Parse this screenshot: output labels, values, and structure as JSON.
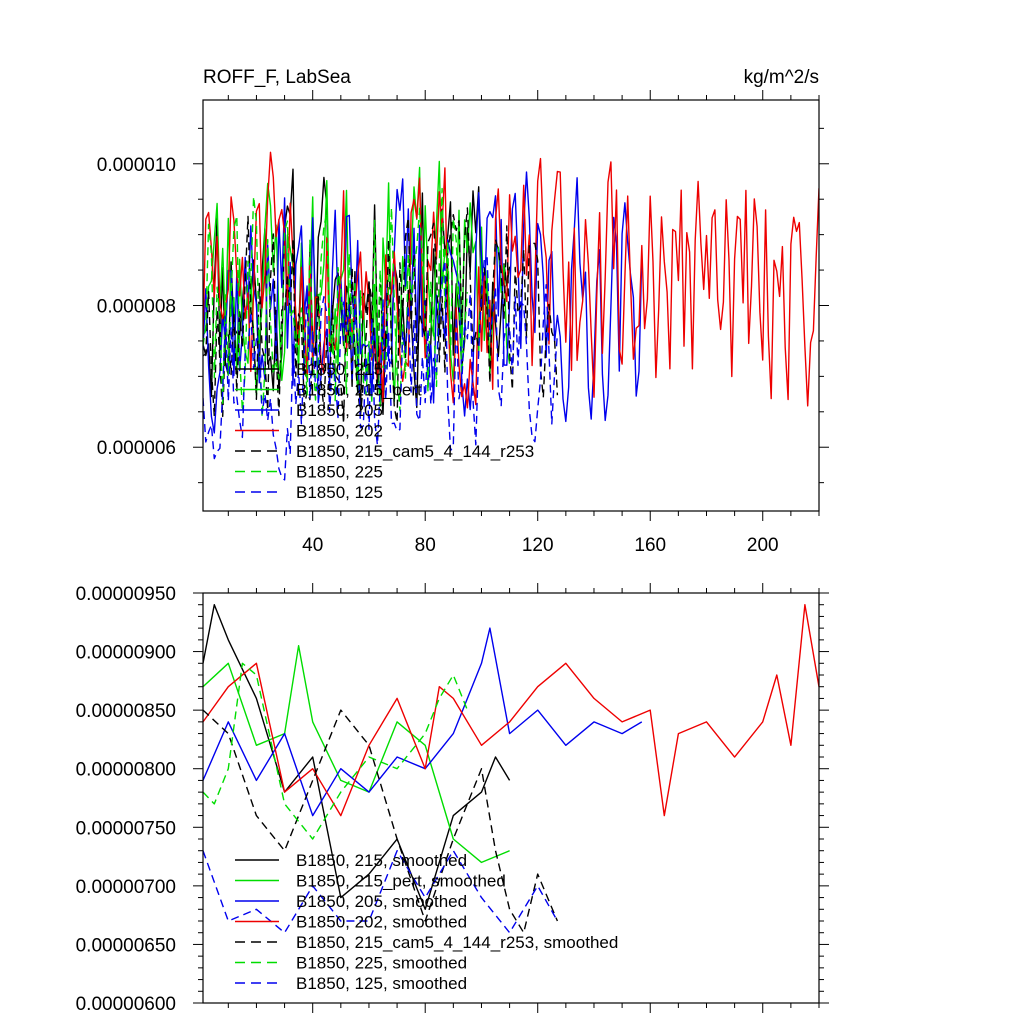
{
  "chart_data": [
    {
      "type": "line",
      "title_left": "ROFF_F, LabSea",
      "title_right": "kg/m^2/s",
      "xlim": [
        1,
        220
      ],
      "ylim": [
        5.1e-06,
        1.09e-05
      ],
      "xticks": [
        {
          "v": 40,
          "label": "40"
        },
        {
          "v": 80,
          "label": "80"
        },
        {
          "v": 120,
          "label": "120"
        },
        {
          "v": 160,
          "label": "160"
        },
        {
          "v": 200,
          "label": "200"
        }
      ],
      "yticks": [
        {
          "v": 6e-06,
          "label": "0.000006"
        },
        {
          "v": 8e-06,
          "label": "0.000008"
        },
        {
          "v": 1e-05,
          "label": "0.000010"
        }
      ],
      "series": [
        {
          "name": "B1850, 215",
          "color": "#000000",
          "dash": "solid",
          "length": 110,
          "mean": 8.2,
          "amp": 0.9,
          "seed": 11
        },
        {
          "name": "B1850, 215_pert",
          "color": "#00dd00",
          "dash": "solid",
          "length": 110,
          "mean": 8.3,
          "amp": 0.9,
          "seed": 23
        },
        {
          "name": "B1850, 205",
          "color": "#0000ee",
          "dash": "solid",
          "length": 157,
          "mean": 8.1,
          "amp": 0.9,
          "seed": 37
        },
        {
          "name": "B1850, 202",
          "color": "#ee0000",
          "dash": "solid",
          "length": 220,
          "mean": 8.3,
          "amp": 0.9,
          "seed": 51
        },
        {
          "name": "B1850, 215_cam5_4_144_r253",
          "color": "#000000",
          "dash": "dashed",
          "length": 127,
          "mean": 7.9,
          "amp": 0.8,
          "seed": 67
        },
        {
          "name": "B1850, 225",
          "color": "#00dd00",
          "dash": "dashed",
          "length": 95,
          "mean": 8.1,
          "amp": 0.9,
          "seed": 79
        },
        {
          "name": "B1850, 125",
          "color": "#0000ee",
          "dash": "dashed",
          "length": 127,
          "mean": 7.2,
          "amp": 0.7,
          "seed": 97
        }
      ]
    },
    {
      "type": "line",
      "xlim": [
        1,
        220
      ],
      "ylim": [
        6e-06,
        9.5e-06
      ],
      "yticks": [
        {
          "v": 6e-06,
          "label": "0.00000600"
        },
        {
          "v": 6.5e-06,
          "label": "0.00000650"
        },
        {
          "v": 7e-06,
          "label": "0.00000700"
        },
        {
          "v": 7.5e-06,
          "label": "0.00000750"
        },
        {
          "v": 8e-06,
          "label": "0.00000800"
        },
        {
          "v": 8.5e-06,
          "label": "0.00000850"
        },
        {
          "v": 9e-06,
          "label": "0.00000900"
        },
        {
          "v": 9.5e-06,
          "label": "0.00000950"
        }
      ],
      "series": [
        {
          "name": "B1850, 215, smoothed",
          "color": "#000000",
          "dash": "solid",
          "x": [
            1,
            5,
            10,
            20,
            30,
            40,
            50,
            60,
            70,
            80,
            90,
            100,
            105,
            110
          ],
          "y": [
            8.9,
            9.4,
            9.1,
            8.6,
            7.8,
            8.1,
            6.9,
            7.1,
            7.4,
            6.8,
            7.6,
            7.8,
            8.1,
            7.9
          ]
        },
        {
          "name": "B1850, 215_pert, smoothed",
          "color": "#00dd00",
          "dash": "solid",
          "x": [
            1,
            10,
            20,
            30,
            35,
            40,
            50,
            60,
            70,
            80,
            90,
            100,
            110
          ],
          "y": [
            8.7,
            8.9,
            8.2,
            8.3,
            9.05,
            8.4,
            7.9,
            7.8,
            8.4,
            8.2,
            7.4,
            7.2,
            7.3
          ]
        },
        {
          "name": "B1850, 205, smoothed",
          "color": "#0000ee",
          "dash": "solid",
          "x": [
            1,
            10,
            20,
            30,
            40,
            50,
            60,
            70,
            80,
            90,
            100,
            103,
            110,
            120,
            130,
            140,
            150,
            157
          ],
          "y": [
            7.9,
            8.4,
            7.9,
            8.3,
            7.6,
            8.0,
            7.8,
            8.1,
            8.0,
            8.3,
            8.9,
            9.2,
            8.3,
            8.5,
            8.2,
            8.4,
            8.3,
            8.4
          ]
        },
        {
          "name": "B1850, 202, smoothed",
          "color": "#ee0000",
          "dash": "solid",
          "x": [
            1,
            10,
            20,
            30,
            40,
            50,
            60,
            70,
            80,
            85,
            90,
            100,
            110,
            120,
            130,
            140,
            150,
            160,
            165,
            170,
            180,
            190,
            200,
            205,
            210,
            215,
            220
          ],
          "y": [
            8.4,
            8.7,
            8.9,
            7.8,
            8.0,
            7.6,
            8.2,
            8.6,
            8.0,
            8.7,
            8.6,
            8.2,
            8.4,
            8.7,
            8.9,
            8.6,
            8.4,
            8.5,
            7.6,
            8.3,
            8.4,
            8.1,
            8.4,
            8.8,
            8.2,
            9.4,
            8.7
          ]
        },
        {
          "name": "B1850, 215_cam5_4_144_r253, smoothed",
          "color": "#000000",
          "dash": "dashed",
          "x": [
            1,
            10,
            20,
            30,
            40,
            50,
            60,
            70,
            80,
            90,
            100,
            105,
            110,
            115,
            120,
            127
          ],
          "y": [
            8.5,
            8.3,
            7.6,
            7.3,
            7.9,
            8.5,
            8.2,
            7.4,
            6.7,
            7.4,
            8.0,
            7.3,
            6.8,
            6.6,
            7.1,
            6.7
          ]
        },
        {
          "name": "B1850, 225, smoothed",
          "color": "#00dd00",
          "dash": "dashed",
          "x": [
            1,
            5,
            10,
            15,
            20,
            30,
            40,
            50,
            60,
            70,
            80,
            85,
            90,
            95
          ],
          "y": [
            7.8,
            7.7,
            8.0,
            8.9,
            8.8,
            7.7,
            7.4,
            7.8,
            8.1,
            8.0,
            8.3,
            8.6,
            8.8,
            8.5
          ]
        },
        {
          "name": "B1850, 125, smoothed",
          "color": "#0000ee",
          "dash": "dashed",
          "x": [
            1,
            10,
            20,
            30,
            40,
            50,
            60,
            70,
            80,
            90,
            100,
            110,
            120,
            127
          ],
          "y": [
            7.3,
            6.7,
            6.8,
            6.6,
            7.0,
            6.7,
            6.7,
            7.3,
            6.9,
            7.3,
            6.9,
            6.6,
            7.0,
            6.7
          ]
        }
      ]
    }
  ]
}
